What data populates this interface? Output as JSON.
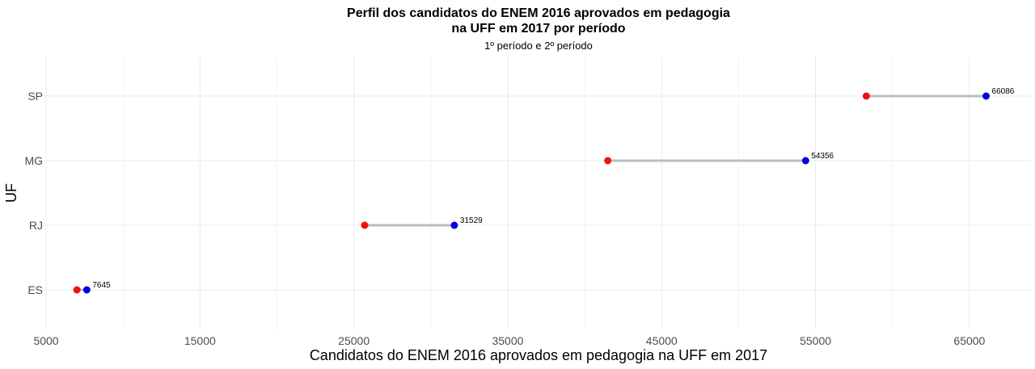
{
  "chart_data": {
    "type": "dumbbell",
    "title_line1": "Perfil dos candidatos do ENEM 2016 aprovados em pedagogia",
    "title_line2": "na UFF em 2017 por período",
    "subtitle": "1º período e 2º período",
    "xlabel": "Candidatos do ENEM 2016 aprovados em pedagogia na UFF em 2017",
    "ylabel": "UF",
    "xlim": [
      4000,
      69000
    ],
    "x_ticks": [
      5000,
      15000,
      25000,
      35000,
      45000,
      55000,
      65000
    ],
    "x_tick_labels": [
      "5000",
      "15000",
      "25000",
      "35000",
      "45000",
      "55000",
      "65000"
    ],
    "categories": [
      "ES",
      "RJ",
      "MG",
      "SP"
    ],
    "series": [
      {
        "values": [
          7000,
          25700,
          41500,
          58300
        ]
      },
      {
        "values": [
          7645,
          31529,
          54356,
          66086
        ]
      }
    ],
    "data_labels": [
      "7645",
      "31529",
      "54356",
      "66086"
    ],
    "colors": {
      "start_point": "#ee1111",
      "end_point": "#0000dd",
      "segment": "#bdbdbd"
    },
    "grid": true
  }
}
